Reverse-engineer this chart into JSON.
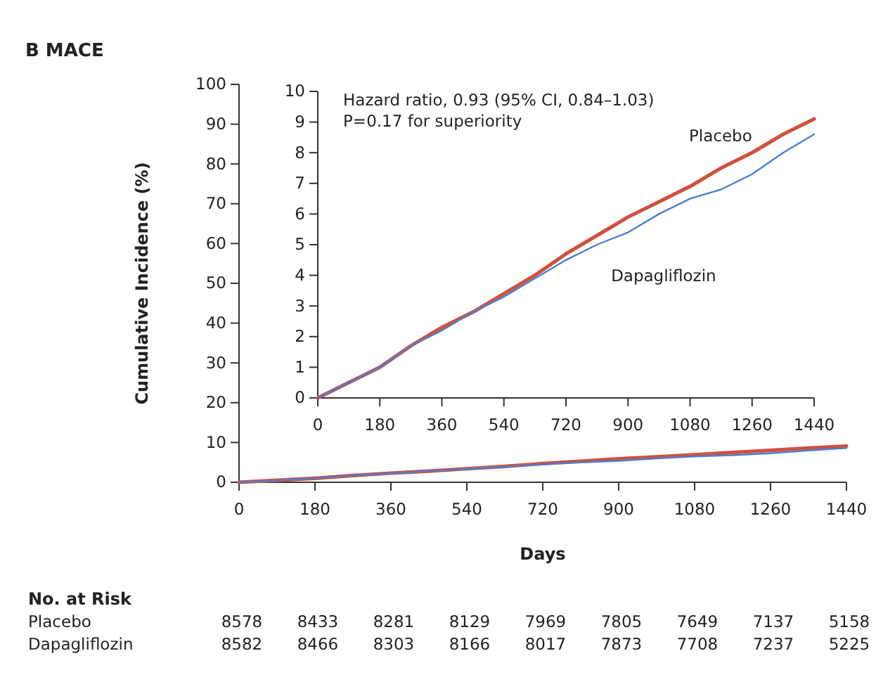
{
  "chart_data": [
    {
      "type": "line",
      "title": "B MACE",
      "xlabel": "Days",
      "ylabel": "Cumulative Incidence (%)",
      "xlim": [
        0,
        1440
      ],
      "xticks": [
        0,
        180,
        360,
        540,
        720,
        900,
        1080,
        1260,
        1440
      ],
      "ylim": [
        0,
        100
      ],
      "yticks": [
        0,
        10,
        20,
        30,
        40,
        50,
        60,
        70,
        80,
        90,
        100
      ],
      "x": [
        0,
        90,
        180,
        270,
        360,
        450,
        540,
        630,
        720,
        810,
        900,
        990,
        1080,
        1170,
        1260,
        1350,
        1440
      ],
      "series": [
        {
          "color": "#d0503f",
          "values": [
            0,
            0.5,
            1.0,
            1.7,
            2.3,
            2.8,
            3.4,
            4.0,
            4.7,
            5.3,
            5.9,
            6.4,
            6.9,
            7.5,
            8.0,
            8.6,
            9.1
          ]
        },
        {
          "color": "#4a7fd0",
          "values": [
            0,
            0.5,
            1.0,
            1.7,
            2.2,
            2.8,
            3.3,
            3.9,
            4.5,
            5.0,
            5.4,
            6.0,
            6.5,
            6.8,
            7.3,
            8.0,
            8.6
          ]
        }
      ],
      "annotations": [
        "No. at Risk",
        "Placebo 8578 8433 8281 8129 7969 7805 7649 7137 5158",
        "Dapagliflozin 8582 8466 8303 8166 8017 7873 7708 7237 5225"
      ]
    },
    {
      "type": "line",
      "xlim": [
        0,
        1440
      ],
      "xticks": [
        0,
        180,
        360,
        540,
        720,
        900,
        1080,
        1260,
        1440
      ],
      "ylim": [
        0,
        10
      ],
      "yticks": [
        0,
        1,
        2,
        3,
        4,
        5,
        6,
        7,
        8,
        9,
        10
      ],
      "x": [
        0,
        90,
        180,
        270,
        360,
        450,
        540,
        630,
        720,
        810,
        900,
        990,
        1080,
        1170,
        1260,
        1350,
        1440
      ],
      "series": [
        {
          "name": "Placebo",
          "color": "#d0503f",
          "values": [
            0,
            0.5,
            1.0,
            1.7,
            2.3,
            2.8,
            3.4,
            4.0,
            4.7,
            5.3,
            5.9,
            6.4,
            6.9,
            7.5,
            8.0,
            8.6,
            9.1
          ]
        },
        {
          "name": "Dapagliflozin",
          "color": "#4a7fd0",
          "values": [
            0,
            0.5,
            1.0,
            1.7,
            2.2,
            2.8,
            3.3,
            3.9,
            4.5,
            5.0,
            5.4,
            6.0,
            6.5,
            6.8,
            7.3,
            8.0,
            8.6
          ]
        }
      ],
      "annotations": [
        "Hazard ratio, 0.93 (95% CI, 0.84–1.03)",
        "P=0.17 for superiority"
      ]
    }
  ]
}
